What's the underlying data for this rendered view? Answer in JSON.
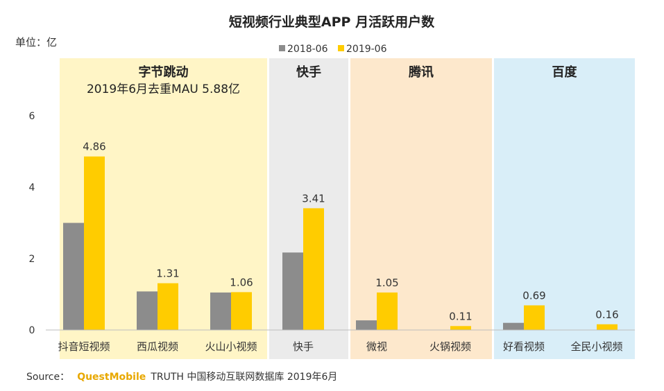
{
  "chart_data": {
    "type": "bar",
    "title": "短视频行业典型APP 月活跃用户数",
    "unit_label": "单位：亿",
    "ylim": [
      0,
      6
    ],
    "yticks": [
      "0",
      "2",
      "4",
      "6"
    ],
    "legend_position": "top-center",
    "series": [
      {
        "name": "2018-06",
        "color": "#8c8c8c",
        "values": [
          3.0,
          1.08,
          1.05,
          2.17,
          0.27,
          0.0,
          0.2,
          0.0
        ]
      },
      {
        "name": "2019-06",
        "color": "#ffcc00",
        "values": [
          4.86,
          1.31,
          1.06,
          3.41,
          1.05,
          0.11,
          0.69,
          0.16
        ]
      }
    ],
    "value_labels": [
      "4.86",
      "1.31",
      "1.06",
      "3.41",
      "1.05",
      "0.11",
      "0.69",
      "0.16"
    ],
    "categories": [
      "抖音短视频",
      "西瓜视频",
      "火山小视频",
      "快手",
      "微视",
      "火锅视频",
      "好看视频",
      "全民小视频"
    ],
    "groups": [
      {
        "name": "字节跳动",
        "subtitle": "2019年6月去重MAU 5.88亿",
        "color": "#fff5c6",
        "members": [
          0,
          1,
          2
        ]
      },
      {
        "name": "快手",
        "subtitle": "",
        "color": "#ebebeb",
        "members": [
          3
        ]
      },
      {
        "name": "腾讯",
        "subtitle": "",
        "color": "#fde8cc",
        "members": [
          4,
          5
        ]
      },
      {
        "name": "百度",
        "subtitle": "",
        "color": "#d9eef8",
        "members": [
          6,
          7
        ]
      }
    ]
  },
  "source": {
    "prefix": "Source：",
    "brand": "QuestMobile",
    "text": "TRUTH 中国移动互联网数据库 2019年6月"
  }
}
